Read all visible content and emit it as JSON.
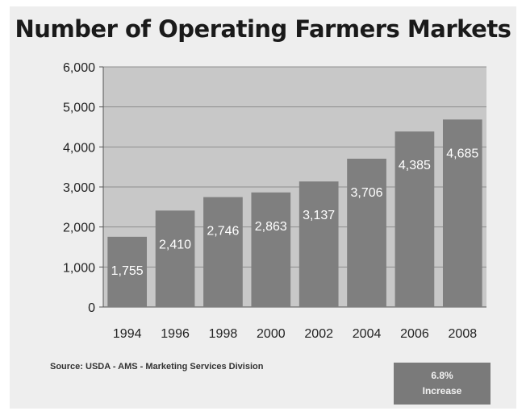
{
  "chart_data": {
    "type": "bar",
    "title": "Number of Operating Farmers Markets",
    "categories": [
      "1994",
      "1996",
      "1998",
      "2000",
      "2002",
      "2004",
      "2006",
      "2008"
    ],
    "values": [
      1755,
      2410,
      2746,
      2863,
      3137,
      3706,
      4385,
      4685
    ],
    "value_labels": [
      "1,755",
      "2,410",
      "2,746",
      "2,863",
      "3,137",
      "3,706",
      "4,385",
      "4,685"
    ],
    "y_ticks": [
      "0",
      "1,000",
      "2,000",
      "3,000",
      "4,000",
      "5,000",
      "6,000"
    ],
    "ylim": [
      0,
      6000
    ],
    "xlabel": "",
    "ylabel": "",
    "grid": true,
    "colors": {
      "bar": "#7f7f7f",
      "plot_bg": "#c8c8c8",
      "grid": "#8e8e8e",
      "label": "#ffffff"
    }
  },
  "source_note": "Source: USDA - AMS - Marketing Services Division",
  "badge": {
    "line1": "6.8%",
    "line2": "Increase"
  }
}
